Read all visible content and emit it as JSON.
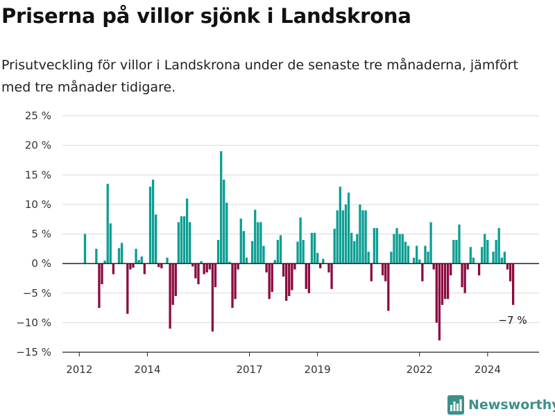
{
  "title": "Priserna på villor sjönk i Landskrona",
  "subtitle": "Prisutveckling för villor i Landskrona under de senaste tre månaderna, jämfört med tre månader tidigare.",
  "brand": "Newsworthy",
  "colors": {
    "positive": "#0c9e93",
    "negative": "#8c0a3f",
    "grid": "#d8d8d8",
    "axis": "#222222",
    "brand": "#3d8f89"
  },
  "chart_data": {
    "type": "bar",
    "x_start": "2012-01",
    "x_interval": "month",
    "ylabel_suffix": " %",
    "ylim": [
      -15,
      25
    ],
    "yticks": [
      -15,
      -10,
      -5,
      0,
      5,
      10,
      15,
      20,
      25
    ],
    "ytick_labels": [
      "−15 %",
      "−10 %",
      "−5 %",
      "0 %",
      "5 %",
      "10 %",
      "15 %",
      "20 %",
      "25 %"
    ],
    "xtick_labels": [
      {
        "label": "2012",
        "month": "2012-01"
      },
      {
        "label": "2014",
        "month": "2014-01"
      },
      {
        "label": "2017",
        "month": "2017-01"
      },
      {
        "label": "2019",
        "month": "2019-01"
      },
      {
        "label": "2022",
        "month": "2022-01"
      },
      {
        "label": "2024",
        "month": "2024-01"
      }
    ],
    "values": [
      null,
      null,
      5,
      null,
      null,
      null,
      2.5,
      -7.5,
      -3.5,
      0.5,
      13.5,
      6.8,
      -1.8,
      null,
      2.6,
      3.5,
      null,
      -8.5,
      -1.0,
      -0.7,
      2.5,
      0.6,
      1.2,
      -1.8,
      null,
      13.0,
      14.2,
      8.3,
      -0.6,
      -0.8,
      null,
      1.0,
      -11.0,
      -7.0,
      -5.5,
      7.0,
      8.0,
      8.0,
      11.0,
      7.0,
      -0.5,
      -2.5,
      -3.5,
      0.4,
      -1.8,
      -1.5,
      -1.0,
      -11.5,
      -4.0,
      4.0,
      19.0,
      14.2,
      10.3,
      0.3,
      -7.5,
      -6.0,
      -1.0,
      7.6,
      5.5,
      1.0,
      null,
      3.8,
      9.1,
      7.0,
      7.0,
      3.0,
      -1.5,
      -6.0,
      -4.8,
      0.6,
      4.0,
      4.8,
      -2.2,
      -6.3,
      -5.5,
      -4.5,
      -1.0,
      3.7,
      7.8,
      4.0,
      -4.3,
      -5.0,
      5.2,
      5.2,
      1.8,
      -0.8,
      0.8,
      null,
      -1.5,
      -4.3,
      5.9,
      9.0,
      13.0,
      9.0,
      10.0,
      12.0,
      5.2,
      3.8,
      5.0,
      10.0,
      9.0,
      9.0,
      2.0,
      -3.0,
      6.0,
      6.0,
      null,
      -2.0,
      -3.0,
      -8.0,
      2.0,
      5.0,
      6.0,
      5.0,
      5.0,
      3.7,
      3.0,
      null,
      1.0,
      3.0,
      0.7,
      -3.0,
      3.0,
      2.0,
      7.0,
      -1.0,
      -10.0,
      -13.0,
      -7.0,
      -6.0,
      -6.0,
      -2.0,
      4.0,
      4.0,
      6.6,
      -4.0,
      -5.0,
      -1.0,
      2.8,
      1.0,
      null,
      -2.0,
      2.8,
      5.0,
      4.0,
      null,
      2.0,
      4.0,
      6.0,
      1.0,
      2.0,
      -1.0,
      -3.0,
      -7.0
    ],
    "last_label": "−7 %",
    "grid": true,
    "legend": "none"
  }
}
